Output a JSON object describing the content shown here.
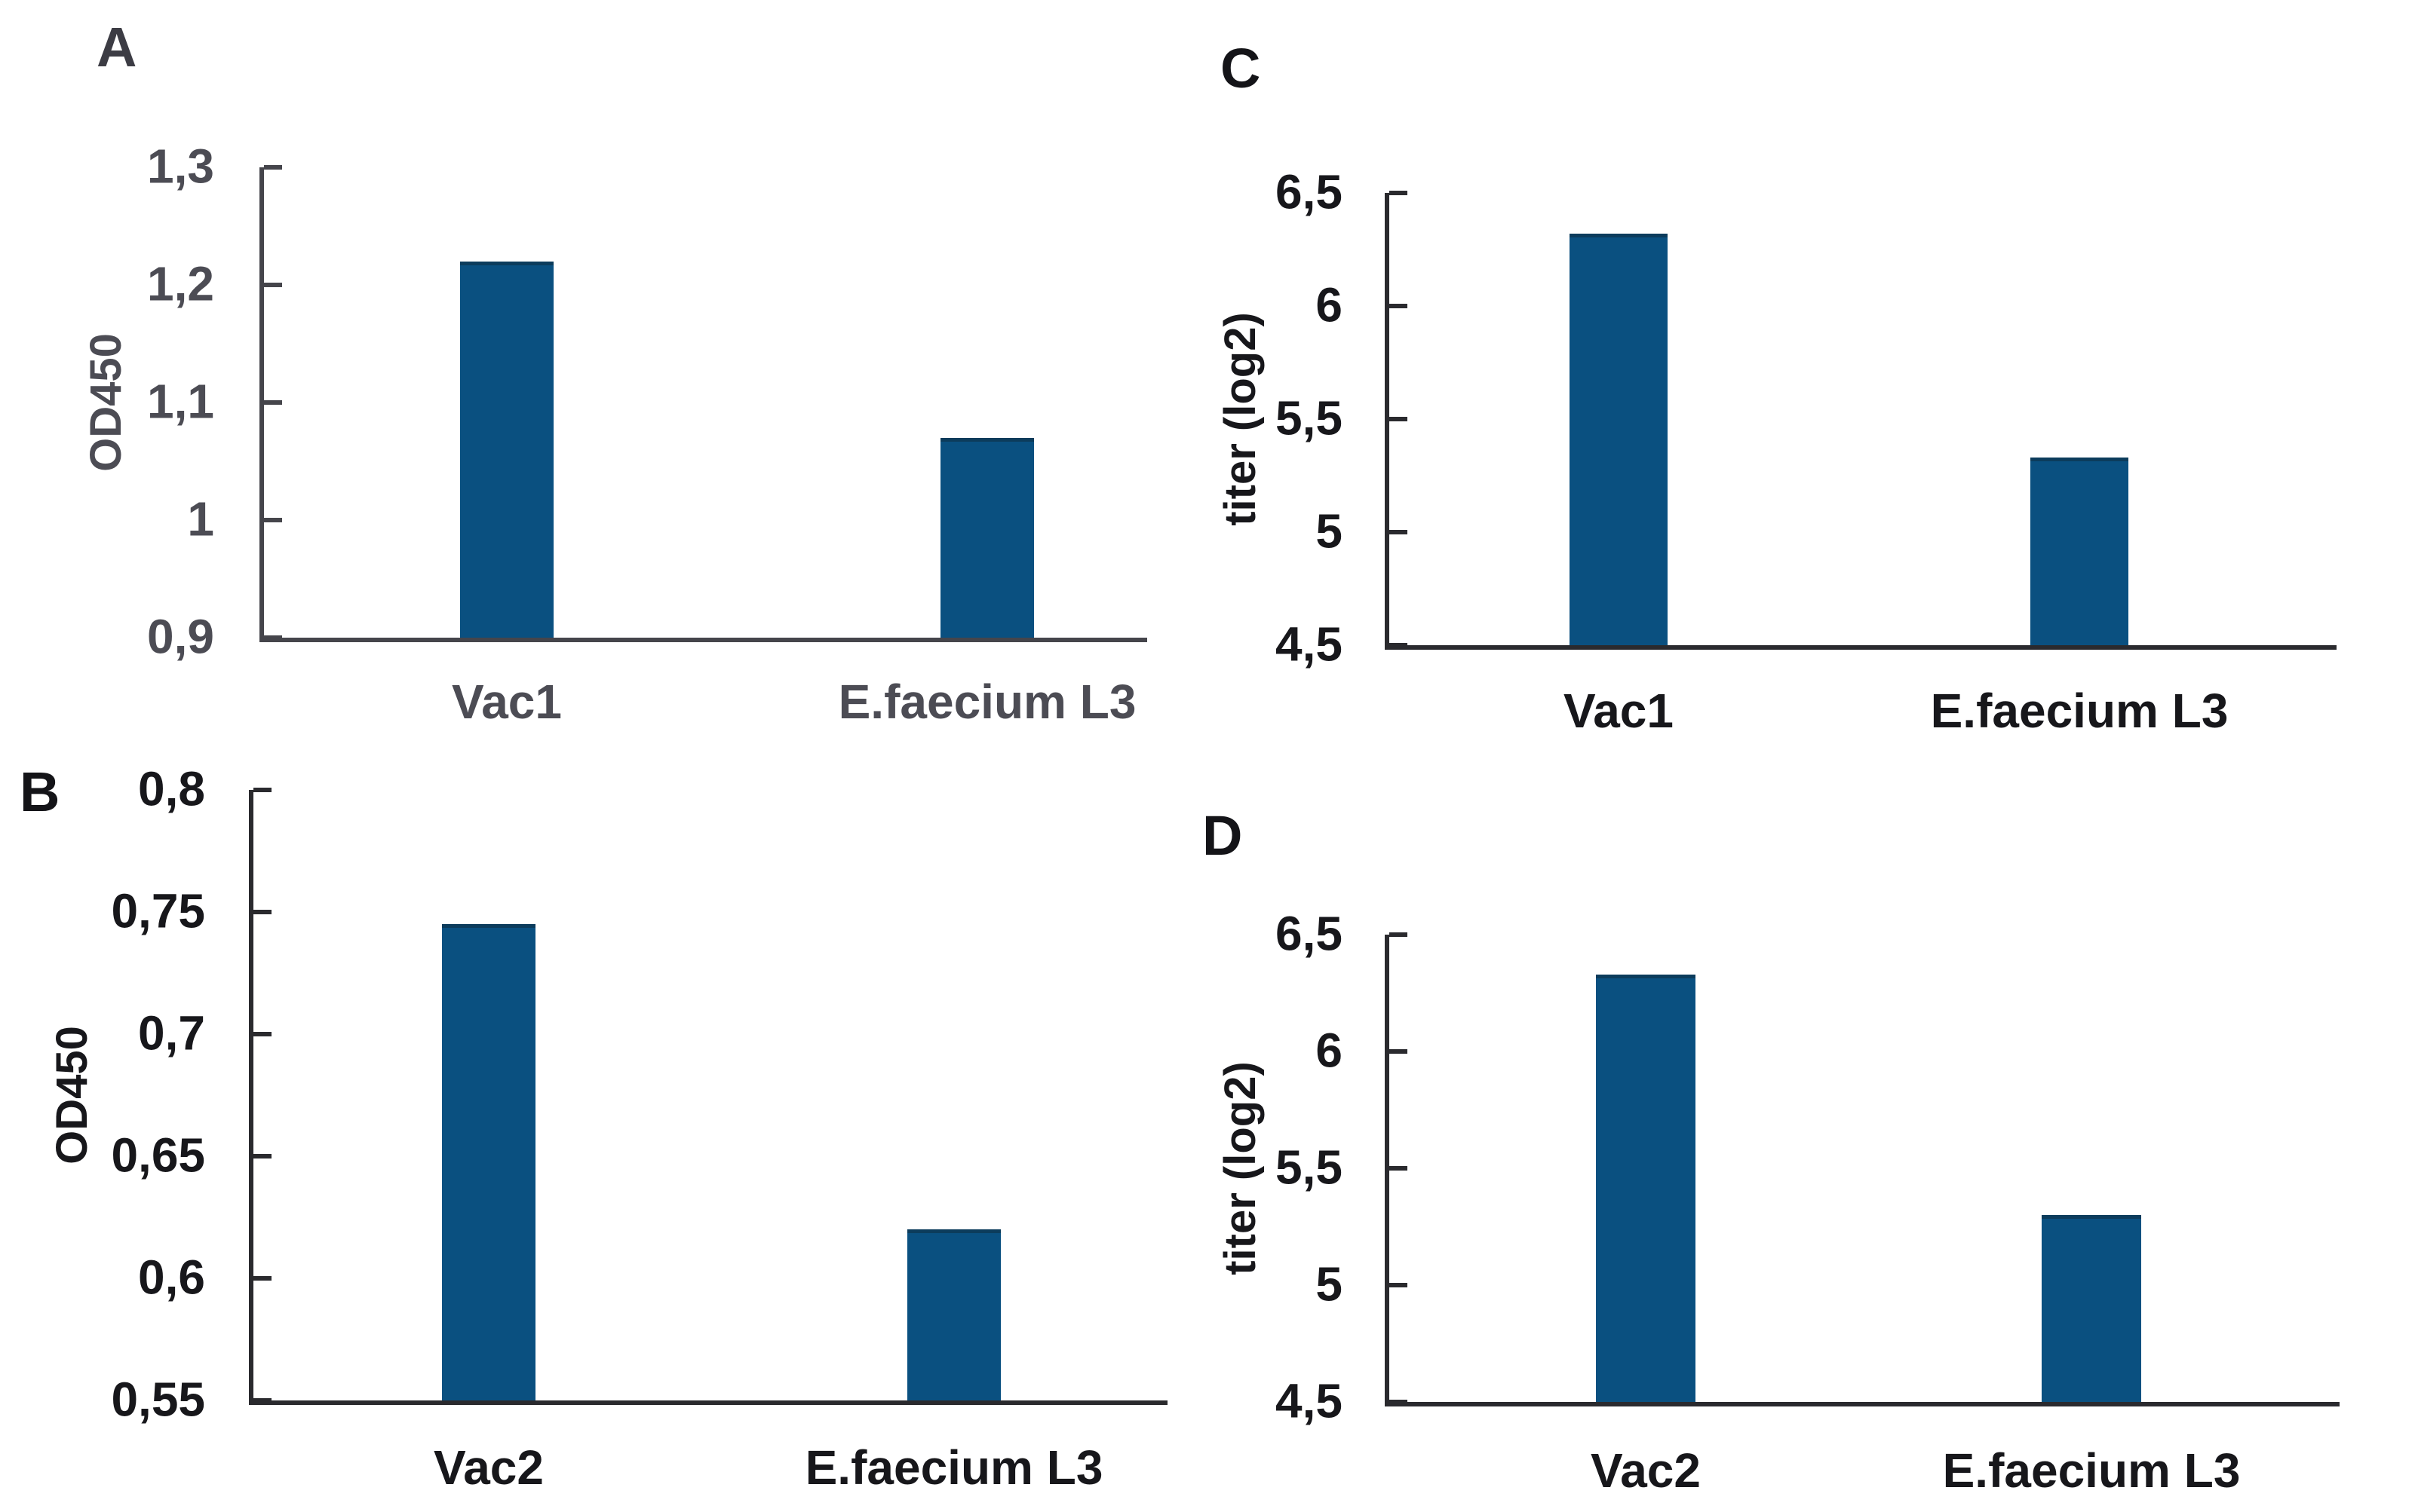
{
  "chart_data": [
    {
      "panel": "A",
      "type": "bar",
      "title": "",
      "xlabel": "",
      "ylabel": "OD450",
      "categories": [
        "Vac1",
        "E.faecium L3"
      ],
      "values": [
        1.22,
        1.07
      ],
      "ylim": [
        0.9,
        1.3
      ],
      "yticks": [
        1.3,
        1.2,
        1.1,
        1.0,
        0.9
      ],
      "ytick_labels": [
        "1,3",
        "1,2",
        "1,1",
        "1",
        "0,9"
      ],
      "grid": false,
      "legend": false,
      "bar_color": "#0a5080",
      "bar_edge_color": "#0c3c5c",
      "axis_color": "#45454b",
      "text_color": "#4c4c54",
      "letter_color": "#3c3c44"
    },
    {
      "panel": "B",
      "type": "bar",
      "title": "",
      "xlabel": "",
      "ylabel": "OD450",
      "categories": [
        "Vac2",
        "E.faecium L3"
      ],
      "values": [
        0.745,
        0.62
      ],
      "ylim": [
        0.55,
        0.8
      ],
      "yticks": [
        0.8,
        0.75,
        0.7,
        0.65,
        0.6,
        0.55
      ],
      "ytick_labels": [
        "0,8",
        "0,75",
        "0,7",
        "0,65",
        "0,6",
        "0,55"
      ],
      "grid": false,
      "legend": false,
      "bar_color": "#0a5080",
      "bar_edge_color": "#0c3c5c",
      "axis_color": "#2a2a2e",
      "text_color": "#17171b",
      "letter_color": "#141418"
    },
    {
      "panel": "C",
      "type": "bar",
      "title": "",
      "xlabel": "",
      "ylabel": "titer (log2)",
      "categories": [
        "Vac1",
        "E.faecium L3"
      ],
      "values": [
        6.32,
        5.33
      ],
      "ylim": [
        4.5,
        6.5
      ],
      "yticks": [
        6.5,
        6.0,
        5.5,
        5.0,
        4.5
      ],
      "ytick_labels": [
        "6,5",
        "6",
        "5,5",
        "5",
        "4,5"
      ],
      "grid": false,
      "legend": false,
      "bar_color": "#0a5080",
      "bar_edge_color": "#0c3c5c",
      "axis_color": "#2a2a2e",
      "text_color": "#17171b",
      "letter_color": "#141418"
    },
    {
      "panel": "D",
      "type": "bar",
      "title": "",
      "xlabel": "",
      "ylabel": "titer (log2)",
      "categories": [
        "Vac2",
        "E.faecium L3"
      ],
      "values": [
        6.33,
        5.3
      ],
      "ylim": [
        4.5,
        6.5
      ],
      "yticks": [
        6.5,
        6.0,
        5.5,
        5.0,
        4.5
      ],
      "ytick_labels": [
        "6,5",
        "6",
        "5,5",
        "5",
        "4,5"
      ],
      "grid": false,
      "legend": false,
      "bar_color": "#0a5080",
      "bar_edge_color": "#0c3c5c",
      "axis_color": "#2a2a2e",
      "text_color": "#17171b",
      "letter_color": "#141418"
    }
  ]
}
